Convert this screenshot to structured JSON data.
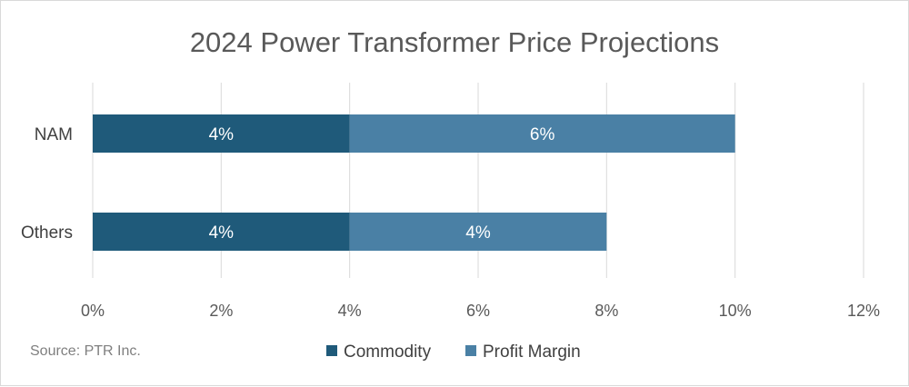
{
  "chart_data": {
    "type": "bar",
    "orientation": "horizontal",
    "stacked": true,
    "title": "2024 Power Transformer Price Projections",
    "categories": [
      "NAM",
      "Others"
    ],
    "series": [
      {
        "name": "Commodity",
        "values": [
          4,
          4
        ],
        "labels": [
          "4%",
          "4%"
        ],
        "color": "#1f5a7a"
      },
      {
        "name": "Profit Margin",
        "values": [
          6,
          4
        ],
        "labels": [
          "6%",
          "4%"
        ],
        "color": "#4a80a5"
      }
    ],
    "xlim": [
      0,
      12
    ],
    "x_ticks": [
      0,
      2,
      4,
      6,
      8,
      10,
      12
    ],
    "x_tick_labels": [
      "0%",
      "2%",
      "4%",
      "6%",
      "8%",
      "10%",
      "12%"
    ],
    "grid": true,
    "legend_position": "bottom"
  },
  "source_note": "Source: PTR Inc."
}
